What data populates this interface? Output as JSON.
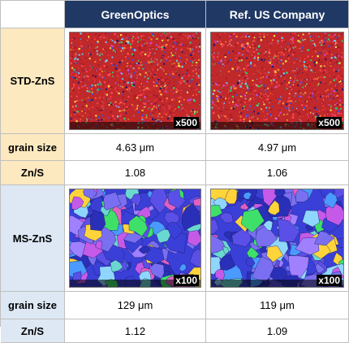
{
  "header": {
    "corner": "",
    "col1": "GreenOptics",
    "col2": "Ref. US Company"
  },
  "std": {
    "label": "STD-ZnS",
    "magnification_left": "x500",
    "magnification_right": "x500",
    "grain_size_label": "grain size",
    "grain_size_left": "4.63 μm",
    "grain_size_right": "4.97 μm",
    "ratio_label": "Zn/S",
    "ratio_left": "1.08",
    "ratio_right": "1.06"
  },
  "ms": {
    "label": "MS-ZnS",
    "magnification_left": "x100",
    "magnification_right": "x100",
    "grain_size_label": "grain size",
    "grain_size_left": "129 μm",
    "grain_size_right": "119 μm",
    "ratio_label": "Zn/S",
    "ratio_left": "1.12",
    "ratio_right": "1.09"
  },
  "colors": {
    "header_bg": "#1f3864",
    "std_label_bg": "#fde9c0",
    "ms_label_bg": "#dde8f4",
    "fine_grain_base": "#c0282a",
    "coarse_grain_base": "#3a3fd8"
  },
  "images": [
    {
      "name": "greenoptics-std-micrograph",
      "style": "fine"
    },
    {
      "name": "ref-std-micrograph",
      "style": "fine"
    },
    {
      "name": "greenoptics-ms-micrograph",
      "style": "coarse"
    },
    {
      "name": "ref-ms-micrograph",
      "style": "coarse"
    }
  ]
}
